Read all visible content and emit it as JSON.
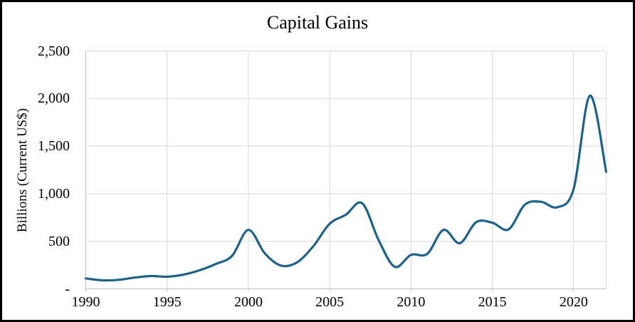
{
  "window": {
    "background_color": "#FFFFFF",
    "frame_color": "#000000"
  },
  "chart": {
    "title": "Capital Gains",
    "y_axis": {
      "label": "Billions (Current US$)",
      "ticks": [
        "2,500",
        "2,000",
        "1,500",
        "1,000",
        "500",
        "-"
      ]
    },
    "x_axis": {
      "ticks": [
        "1990",
        "1995",
        "2000",
        "2005",
        "2010",
        "2015",
        "2020"
      ]
    }
  },
  "chart_data": {
    "type": "line",
    "title": "Capital Gains",
    "xlabel": "",
    "ylabel": "Billions (Current US$)",
    "x": [
      1990,
      1991,
      1992,
      1993,
      1994,
      1995,
      1996,
      1997,
      1998,
      1999,
      2000,
      2001,
      2002,
      2003,
      2004,
      2005,
      2006,
      2007,
      2008,
      2009,
      2010,
      2011,
      2012,
      2013,
      2014,
      2015,
      2016,
      2017,
      2018,
      2019,
      2020,
      2021,
      2022
    ],
    "series": [
      {
        "name": "Capital Gains",
        "values": [
          110,
          90,
          95,
          118,
          135,
          128,
          150,
          195,
          262,
          348,
          620,
          375,
          245,
          280,
          450,
          685,
          780,
          900,
          515,
          232,
          358,
          368,
          620,
          480,
          700,
          695,
          625,
          885,
          915,
          858,
          1050,
          2030,
          1230
        ]
      }
    ],
    "xlim": [
      1990,
      2022
    ],
    "ylim": [
      0,
      2500
    ],
    "x_major_ticks": [
      1990,
      1995,
      2000,
      2005,
      2010,
      2015,
      2020
    ],
    "y_major_ticks": [
      0,
      500,
      1000,
      1500,
      2000,
      2500
    ],
    "grid": true,
    "smooth": true,
    "legend": "none",
    "line_color": "#1F6287",
    "gridline_color": "#D9D9D9",
    "axis_line_color": "#BFBFBF"
  }
}
